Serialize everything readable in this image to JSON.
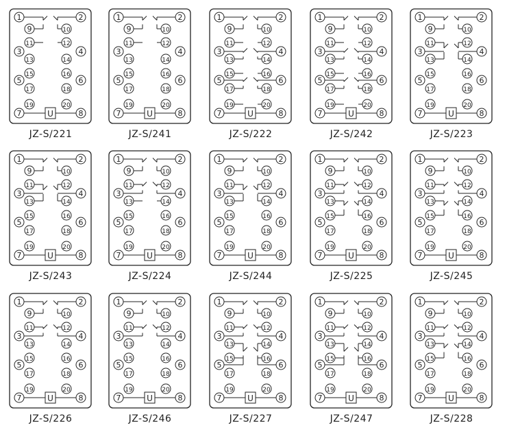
{
  "diagrams": [
    {
      "label": "JZ-S/221"
    },
    {
      "label": "JZ-S/241"
    },
    {
      "label": "JZ-S/222"
    },
    {
      "label": "JZ-S/242"
    },
    {
      "label": "JZ-S/223"
    },
    {
      "label": "JZ-S/243"
    },
    {
      "label": "JZ-S/224"
    },
    {
      "label": "JZ-S/244"
    },
    {
      "label": "JZ-S/225"
    },
    {
      "label": "JZ-S/245"
    },
    {
      "label": "JZ-S/226"
    },
    {
      "label": "JZ-S/246"
    },
    {
      "label": "JZ-S/227"
    },
    {
      "label": "JZ-S/247"
    },
    {
      "label": "JZ-S/228"
    }
  ],
  "terminals": [
    "1",
    "2",
    "3",
    "4",
    "5",
    "6",
    "7",
    "8",
    "9",
    "10",
    "11",
    "12",
    "13",
    "14",
    "15",
    "16",
    "17",
    "18",
    "19",
    "20"
  ],
  "coil_label": "U",
  "colors": {
    "line": "#222222",
    "background": "#ffffff"
  }
}
